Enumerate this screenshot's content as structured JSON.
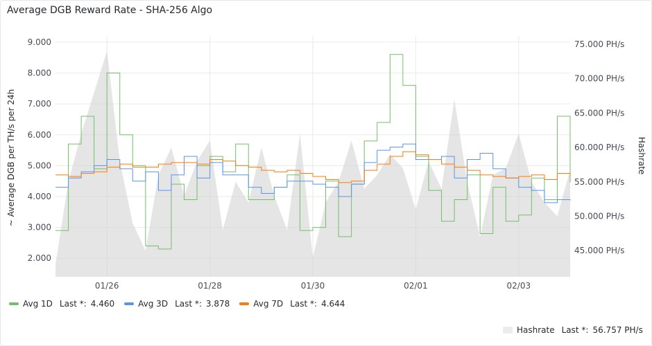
{
  "panel": {
    "title": "Average DGB Reward Rate - SHA-256 Algo"
  },
  "chart_data": {
    "type": "line",
    "title": "Average DGB Reward Rate - SHA-256 Algo",
    "ylabel": "~ Average DGB per TH/s per 24h",
    "y2label": "Hashrate",
    "ylim": [
      1400,
      9200
    ],
    "y2lim": [
      41200,
      76200
    ],
    "yticks": [
      "2.000",
      "3.000",
      "4.000",
      "5.000",
      "6.000",
      "7.000",
      "8.000",
      "9.000"
    ],
    "ytick_values": [
      2000,
      3000,
      4000,
      5000,
      6000,
      7000,
      8000,
      9000
    ],
    "y2ticks": [
      "45.000 PH/s",
      "50.000 PH/s",
      "55.000 PH/s",
      "60.000 PH/s",
      "65.000 PH/s",
      "70.000 PH/s",
      "75.000 PH/s"
    ],
    "y2tick_values": [
      45000,
      50000,
      55000,
      60000,
      65000,
      70000,
      75000
    ],
    "xlim": [
      0,
      10
    ],
    "xticks": [
      "01/26",
      "01/28",
      "01/30",
      "02/01",
      "02/03"
    ],
    "xtick_values": [
      1,
      3,
      5,
      7,
      9
    ],
    "grid": true,
    "legend_placement": "bottom",
    "x": [
      0.0,
      0.25,
      0.5,
      0.75,
      1.0,
      1.25,
      1.5,
      1.75,
      2.0,
      2.25,
      2.5,
      2.75,
      3.0,
      3.25,
      3.5,
      3.75,
      4.0,
      4.25,
      4.5,
      4.75,
      5.0,
      5.25,
      5.5,
      5.75,
      6.0,
      6.25,
      6.5,
      6.75,
      7.0,
      7.25,
      7.5,
      7.75,
      8.0,
      8.25,
      8.5,
      8.75,
      9.0,
      9.25,
      9.5,
      9.75,
      10.0
    ],
    "series": [
      {
        "name": "Avg 1D",
        "color": "#73bf69",
        "last_label": "Last *:",
        "last": "4.460",
        "values": [
          2900,
          5700,
          6600,
          4900,
          8000,
          6000,
          5000,
          2400,
          2300,
          4400,
          3900,
          5000,
          5300,
          4800,
          5700,
          3900,
          3900,
          4300,
          4700,
          2900,
          3000,
          4500,
          2700,
          4400,
          5800,
          6400,
          8600,
          7600,
          5300,
          4200,
          3200,
          3900,
          4700,
          2800,
          4300,
          3200,
          3400,
          4600,
          3900,
          6600,
          4460
        ]
      },
      {
        "name": "Avg 3D",
        "color": "#5794f2",
        "last_label": "Last *:",
        "last": "3.878",
        "values": [
          4300,
          4600,
          4800,
          5000,
          5200,
          4900,
          4500,
          4800,
          4200,
          4700,
          5300,
          4600,
          5100,
          4700,
          4700,
          4300,
          4100,
          4300,
          4500,
          4500,
          4400,
          4300,
          4000,
          4400,
          5100,
          5500,
          5600,
          5700,
          5200,
          5200,
          5300,
          4600,
          5200,
          5400,
          4900,
          4600,
          4300,
          4200,
          3800,
          3900,
          3878
        ]
      },
      {
        "name": "Avg 7D",
        "color": "#ff780a",
        "last_label": "Last *:",
        "last": "4.644",
        "values": [
          4700,
          4650,
          4750,
          4800,
          4950,
          5050,
          4950,
          4950,
          5050,
          5100,
          5100,
          5050,
          5200,
          5150,
          5000,
          4950,
          4850,
          4800,
          4850,
          4750,
          4650,
          4550,
          4450,
          4500,
          4850,
          5050,
          5300,
          5450,
          5350,
          5200,
          5050,
          4950,
          4850,
          4700,
          4650,
          4600,
          4650,
          4700,
          4550,
          4750,
          4644
        ]
      }
    ],
    "hashrate": {
      "name": "Hashrate",
      "color": "#e8e8e8",
      "last_label": "Last *:",
      "last": "56.757 PH/s",
      "values": [
        43000,
        55000,
        62000,
        68000,
        74000,
        58000,
        49000,
        45000,
        56000,
        60000,
        53000,
        58000,
        61000,
        48000,
        55000,
        52000,
        60000,
        53000,
        48000,
        62000,
        44000,
        52000,
        55000,
        61000,
        54000,
        56000,
        59000,
        57000,
        51000,
        58000,
        54000,
        67000,
        55000,
        47000,
        56000,
        57000,
        62000,
        55000,
        52000,
        50000,
        56757
      ]
    }
  }
}
